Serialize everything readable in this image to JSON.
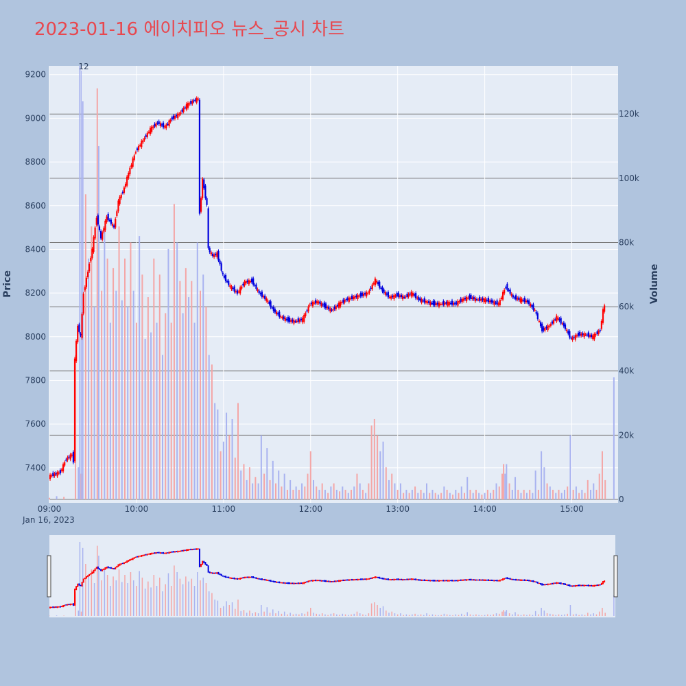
{
  "title": "2023-01-16 에이치피오 뉴스_공시 차트",
  "colors": {
    "up": "#ff0000",
    "down": "#0000dd",
    "up_volume": "#f4a6a6",
    "down_volume": "#a9b3f0",
    "plot_bg": "#e5ecf6",
    "paper_bg": "#b0c4de",
    "title": "#e8474e"
  },
  "chart_data": {
    "type": "candlestick",
    "title": "2023-01-16 에이치피오 뉴스_공시 차트",
    "ylabel": "Price",
    "y2label": "Volume",
    "xlabel": "",
    "date_label": "Jan 16, 2023",
    "x_ticks": [
      "09:00",
      "10:00",
      "11:00",
      "12:00",
      "13:00",
      "14:00",
      "15:00"
    ],
    "y_ticks": [
      7400,
      7600,
      7800,
      8000,
      8200,
      8400,
      8600,
      8800,
      9000,
      9200
    ],
    "y2_ticks": [
      "0",
      "20k",
      "40k",
      "60k",
      "80k",
      "100k",
      "120k"
    ],
    "y_range": [
      7255,
      9240
    ],
    "y2_range": [
      0,
      135000
    ],
    "x_range": [
      "09:00",
      "15:30"
    ],
    "annotation": "12",
    "annotation_time": "09:22",
    "grid": true,
    "rangeslider": true,
    "price_path": [
      [
        "09:00",
        7360
      ],
      [
        "09:08",
        7380
      ],
      [
        "09:12",
        7440
      ],
      [
        "09:16",
        7460
      ],
      [
        "09:17",
        7430
      ],
      [
        "09:18",
        7900
      ],
      [
        "09:20",
        8050
      ],
      [
        "09:22",
        8000
      ],
      [
        "09:24",
        8200
      ],
      [
        "09:27",
        8300
      ],
      [
        "09:30",
        8400
      ],
      [
        "09:33",
        8550
      ],
      [
        "09:36",
        8450
      ],
      [
        "09:40",
        8550
      ],
      [
        "09:45",
        8500
      ],
      [
        "09:48",
        8620
      ],
      [
        "09:52",
        8680
      ],
      [
        "09:55",
        8750
      ],
      [
        "10:00",
        8850
      ],
      [
        "10:05",
        8900
      ],
      [
        "10:10",
        8950
      ],
      [
        "10:15",
        8980
      ],
      [
        "10:20",
        8960
      ],
      [
        "10:25",
        9000
      ],
      [
        "10:30",
        9020
      ],
      [
        "10:35",
        9060
      ],
      [
        "10:40",
        9080
      ],
      [
        "10:43",
        9090
      ],
      [
        "10:44",
        8560
      ],
      [
        "10:46",
        8720
      ],
      [
        "10:49",
        8600
      ],
      [
        "10:50",
        8400
      ],
      [
        "10:53",
        8370
      ],
      [
        "10:56",
        8380
      ],
      [
        "11:00",
        8280
      ],
      [
        "11:05",
        8230
      ],
      [
        "11:10",
        8200
      ],
      [
        "11:15",
        8250
      ],
      [
        "11:20",
        8255
      ],
      [
        "11:25",
        8200
      ],
      [
        "11:30",
        8170
      ],
      [
        "11:35",
        8120
      ],
      [
        "11:40",
        8090
      ],
      [
        "11:45",
        8075
      ],
      [
        "11:50",
        8070
      ],
      [
        "11:55",
        8080
      ],
      [
        "12:00",
        8150
      ],
      [
        "12:05",
        8160
      ],
      [
        "12:10",
        8140
      ],
      [
        "12:15",
        8120
      ],
      [
        "12:20",
        8150
      ],
      [
        "12:25",
        8170
      ],
      [
        "12:30",
        8180
      ],
      [
        "12:35",
        8190
      ],
      [
        "12:40",
        8200
      ],
      [
        "12:45",
        8260
      ],
      [
        "12:50",
        8210
      ],
      [
        "12:55",
        8180
      ],
      [
        "13:00",
        8190
      ],
      [
        "13:05",
        8180
      ],
      [
        "13:10",
        8200
      ],
      [
        "13:15",
        8170
      ],
      [
        "13:20",
        8160
      ],
      [
        "13:25",
        8150
      ],
      [
        "13:30",
        8150
      ],
      [
        "13:35",
        8155
      ],
      [
        "13:40",
        8150
      ],
      [
        "13:45",
        8170
      ],
      [
        "13:50",
        8180
      ],
      [
        "13:55",
        8170
      ],
      [
        "14:00",
        8170
      ],
      [
        "14:05",
        8160
      ],
      [
        "14:10",
        8150
      ],
      [
        "14:15",
        8230
      ],
      [
        "14:20",
        8180
      ],
      [
        "14:25",
        8170
      ],
      [
        "14:30",
        8160
      ],
      [
        "14:35",
        8120
      ],
      [
        "14:40",
        8030
      ],
      [
        "14:45",
        8050
      ],
      [
        "14:50",
        8090
      ],
      [
        "14:55",
        8050
      ],
      [
        "15:00",
        7990
      ],
      [
        "15:05",
        8010
      ],
      [
        "15:10",
        8010
      ],
      [
        "15:15",
        8000
      ],
      [
        "15:20",
        8030
      ],
      [
        "15:22",
        8120
      ],
      [
        "15:23",
        8140
      ]
    ],
    "volume_bars": [
      [
        "09:00",
        500,
        "up"
      ],
      [
        "09:05",
        1000,
        "down"
      ],
      [
        "09:10",
        800,
        "up"
      ],
      [
        "09:18",
        45000,
        "up"
      ],
      [
        "09:20",
        10000,
        "down"
      ],
      [
        "09:21",
        135000,
        "down"
      ],
      [
        "09:22",
        8000,
        "up"
      ],
      [
        "09:23",
        124000,
        "down"
      ],
      [
        "09:25",
        95000,
        "up"
      ],
      [
        "09:27",
        75000,
        "down"
      ],
      [
        "09:29",
        85000,
        "up"
      ],
      [
        "09:31",
        60000,
        "down"
      ],
      [
        "09:33",
        128000,
        "up"
      ],
      [
        "09:34",
        110000,
        "down"
      ],
      [
        "09:36",
        65000,
        "up"
      ],
      [
        "09:38",
        85000,
        "down"
      ],
      [
        "09:40",
        75000,
        "up"
      ],
      [
        "09:42",
        55000,
        "down"
      ],
      [
        "09:44",
        72000,
        "up"
      ],
      [
        "09:46",
        65000,
        "down"
      ],
      [
        "09:48",
        85000,
        "up"
      ],
      [
        "09:50",
        62000,
        "down"
      ],
      [
        "09:52",
        75000,
        "up"
      ],
      [
        "09:54",
        60000,
        "down"
      ],
      [
        "09:56",
        80000,
        "up"
      ],
      [
        "09:58",
        65000,
        "down"
      ],
      [
        "10:00",
        55000,
        "up"
      ],
      [
        "10:02",
        82000,
        "down"
      ],
      [
        "10:04",
        70000,
        "up"
      ],
      [
        "10:06",
        50000,
        "down"
      ],
      [
        "10:08",
        63000,
        "up"
      ],
      [
        "10:10",
        52000,
        "down"
      ],
      [
        "10:12",
        75000,
        "up"
      ],
      [
        "10:14",
        55000,
        "down"
      ],
      [
        "10:16",
        70000,
        "up"
      ],
      [
        "10:18",
        45000,
        "down"
      ],
      [
        "10:20",
        58000,
        "up"
      ],
      [
        "10:22",
        78000,
        "down"
      ],
      [
        "10:24",
        55000,
        "up"
      ],
      [
        "10:26",
        92000,
        "up"
      ],
      [
        "10:28",
        80000,
        "down"
      ],
      [
        "10:30",
        68000,
        "up"
      ],
      [
        "10:32",
        58000,
        "down"
      ],
      [
        "10:34",
        72000,
        "up"
      ],
      [
        "10:36",
        63000,
        "down"
      ],
      [
        "10:38",
        68000,
        "up"
      ],
      [
        "10:40",
        55000,
        "down"
      ],
      [
        "10:42",
        80000,
        "down"
      ],
      [
        "10:44",
        65000,
        "up"
      ],
      [
        "10:46",
        70000,
        "down"
      ],
      [
        "10:48",
        60000,
        "up"
      ],
      [
        "10:50",
        45000,
        "down"
      ],
      [
        "10:52",
        42000,
        "up"
      ],
      [
        "10:54",
        30000,
        "down"
      ],
      [
        "10:56",
        28000,
        "down"
      ],
      [
        "10:58",
        15000,
        "up"
      ],
      [
        "11:00",
        18000,
        "down"
      ],
      [
        "11:02",
        27000,
        "down"
      ],
      [
        "11:04",
        20000,
        "up"
      ],
      [
        "11:06",
        25000,
        "down"
      ],
      [
        "11:08",
        13000,
        "up"
      ],
      [
        "11:10",
        30000,
        "up"
      ],
      [
        "11:12",
        9000,
        "down"
      ],
      [
        "11:14",
        11000,
        "up"
      ],
      [
        "11:16",
        6000,
        "down"
      ],
      [
        "11:18",
        10000,
        "up"
      ],
      [
        "11:20",
        5000,
        "down"
      ],
      [
        "11:22",
        7000,
        "up"
      ],
      [
        "11:24",
        5000,
        "down"
      ],
      [
        "11:26",
        20000,
        "down"
      ],
      [
        "11:28",
        8000,
        "up"
      ],
      [
        "11:30",
        16000,
        "down"
      ],
      [
        "11:32",
        6000,
        "up"
      ],
      [
        "11:34",
        12000,
        "down"
      ],
      [
        "11:36",
        5000,
        "up"
      ],
      [
        "11:38",
        9000,
        "down"
      ],
      [
        "11:40",
        4000,
        "up"
      ],
      [
        "11:42",
        8000,
        "down"
      ],
      [
        "11:44",
        3000,
        "up"
      ],
      [
        "11:46",
        6000,
        "down"
      ],
      [
        "11:48",
        3000,
        "up"
      ],
      [
        "11:50",
        4000,
        "down"
      ],
      [
        "11:52",
        3000,
        "up"
      ],
      [
        "11:54",
        5000,
        "down"
      ],
      [
        "11:56",
        4000,
        "up"
      ],
      [
        "11:58",
        8000,
        "up"
      ],
      [
        "12:00",
        15000,
        "up"
      ],
      [
        "12:02",
        6000,
        "down"
      ],
      [
        "12:04",
        4000,
        "up"
      ],
      [
        "12:06",
        3000,
        "down"
      ],
      [
        "12:08",
        5000,
        "up"
      ],
      [
        "12:10",
        3000,
        "down"
      ],
      [
        "12:12",
        2000,
        "up"
      ],
      [
        "12:14",
        4000,
        "down"
      ],
      [
        "12:16",
        5000,
        "up"
      ],
      [
        "12:18",
        3000,
        "down"
      ],
      [
        "12:20",
        2500,
        "up"
      ],
      [
        "12:22",
        4000,
        "down"
      ],
      [
        "12:24",
        3000,
        "up"
      ],
      [
        "12:26",
        2000,
        "down"
      ],
      [
        "12:28",
        3000,
        "up"
      ],
      [
        "12:30",
        4000,
        "down"
      ],
      [
        "12:32",
        8000,
        "up"
      ],
      [
        "12:34",
        5000,
        "down"
      ],
      [
        "12:36",
        3000,
        "up"
      ],
      [
        "12:38",
        2000,
        "down"
      ],
      [
        "12:40",
        5000,
        "up"
      ],
      [
        "12:42",
        23000,
        "up"
      ],
      [
        "12:44",
        25000,
        "up"
      ],
      [
        "12:46",
        20000,
        "up"
      ],
      [
        "12:48",
        15000,
        "down"
      ],
      [
        "12:50",
        18000,
        "down"
      ],
      [
        "12:52",
        10000,
        "up"
      ],
      [
        "12:54",
        6000,
        "down"
      ],
      [
        "12:56",
        8000,
        "up"
      ],
      [
        "12:58",
        5000,
        "down"
      ],
      [
        "13:00",
        3000,
        "up"
      ],
      [
        "13:02",
        5000,
        "down"
      ],
      [
        "13:04",
        2000,
        "up"
      ],
      [
        "13:06",
        3000,
        "down"
      ],
      [
        "13:08",
        2000,
        "up"
      ],
      [
        "13:10",
        3000,
        "down"
      ],
      [
        "13:12",
        4000,
        "up"
      ],
      [
        "13:14",
        2000,
        "down"
      ],
      [
        "13:16",
        3000,
        "up"
      ],
      [
        "13:18",
        2000,
        "down"
      ],
      [
        "13:20",
        5000,
        "down"
      ],
      [
        "13:22",
        2000,
        "up"
      ],
      [
        "13:24",
        3000,
        "down"
      ],
      [
        "13:26",
        2000,
        "up"
      ],
      [
        "13:28",
        1500,
        "down"
      ],
      [
        "13:30",
        2000,
        "up"
      ],
      [
        "13:32",
        4000,
        "down"
      ],
      [
        "13:34",
        3000,
        "up"
      ],
      [
        "13:36",
        2000,
        "down"
      ],
      [
        "13:38",
        1500,
        "up"
      ],
      [
        "13:40",
        3000,
        "down"
      ],
      [
        "13:42",
        2000,
        "up"
      ],
      [
        "13:44",
        4000,
        "down"
      ],
      [
        "13:46",
        2000,
        "up"
      ],
      [
        "13:48",
        7000,
        "down"
      ],
      [
        "13:50",
        3000,
        "up"
      ],
      [
        "13:52",
        2000,
        "down"
      ],
      [
        "13:54",
        3000,
        "up"
      ],
      [
        "13:56",
        2000,
        "down"
      ],
      [
        "13:58",
        1500,
        "up"
      ],
      [
        "14:00",
        2000,
        "down"
      ],
      [
        "14:02",
        3000,
        "up"
      ],
      [
        "14:04",
        2000,
        "down"
      ],
      [
        "14:06",
        3000,
        "up"
      ],
      [
        "14:08",
        5000,
        "down"
      ],
      [
        "14:10",
        4000,
        "up"
      ],
      [
        "14:12",
        8000,
        "up"
      ],
      [
        "14:13",
        11000,
        "up"
      ],
      [
        "14:14",
        8000,
        "down"
      ],
      [
        "14:15",
        11000,
        "down"
      ],
      [
        "14:17",
        5000,
        "up"
      ],
      [
        "14:19",
        3000,
        "down"
      ],
      [
        "14:21",
        7000,
        "down"
      ],
      [
        "14:23",
        3000,
        "up"
      ],
      [
        "14:25",
        2000,
        "down"
      ],
      [
        "14:27",
        3000,
        "up"
      ],
      [
        "14:29",
        2000,
        "down"
      ],
      [
        "14:31",
        3000,
        "up"
      ],
      [
        "14:33",
        2000,
        "down"
      ],
      [
        "14:35",
        9000,
        "down"
      ],
      [
        "14:37",
        3000,
        "up"
      ],
      [
        "14:39",
        15000,
        "down"
      ],
      [
        "14:41",
        10000,
        "down"
      ],
      [
        "14:43",
        5000,
        "up"
      ],
      [
        "14:45",
        4000,
        "down"
      ],
      [
        "14:47",
        3000,
        "up"
      ],
      [
        "14:49",
        2000,
        "down"
      ],
      [
        "14:51",
        3000,
        "up"
      ],
      [
        "14:53",
        2000,
        "down"
      ],
      [
        "14:55",
        3000,
        "down"
      ],
      [
        "14:57",
        4000,
        "up"
      ],
      [
        "14:59",
        20000,
        "down"
      ],
      [
        "15:01",
        3000,
        "up"
      ],
      [
        "15:03",
        4000,
        "down"
      ],
      [
        "15:05",
        2000,
        "up"
      ],
      [
        "15:07",
        3000,
        "down"
      ],
      [
        "15:09",
        2000,
        "up"
      ],
      [
        "15:11",
        6000,
        "up"
      ],
      [
        "15:13",
        3000,
        "down"
      ],
      [
        "15:15",
        5000,
        "down"
      ],
      [
        "15:17",
        3000,
        "up"
      ],
      [
        "15:19",
        8000,
        "up"
      ],
      [
        "15:21",
        15000,
        "up"
      ],
      [
        "15:23",
        6000,
        "up"
      ],
      [
        "15:29",
        38000,
        "down"
      ]
    ]
  }
}
